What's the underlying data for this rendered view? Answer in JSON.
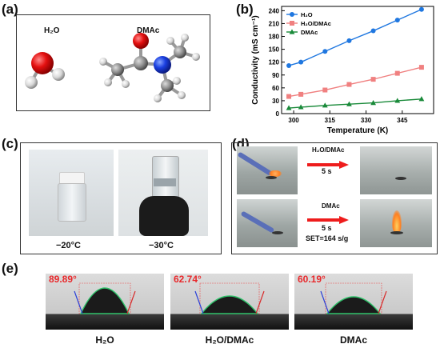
{
  "panels": {
    "a": {
      "letter": "(a)",
      "labels": [
        "H₂O",
        "DMAc"
      ]
    },
    "b": {
      "letter": "(b)"
    },
    "c": {
      "letter": "(c)",
      "captions": [
        "−20°C",
        "−30°C"
      ]
    },
    "d": {
      "letter": "(d)",
      "arrow1": {
        "top": "H₂O/DMAc",
        "bottom": "5 s"
      },
      "arrow2": {
        "top": "DMAc",
        "bottom": "5 s",
        "extra": "SET=164 s/g"
      }
    },
    "e": {
      "letter": "(e)",
      "angles": [
        "89.89°",
        "62.74°",
        "60.19°"
      ],
      "labels": [
        "H₂O",
        "H₂O/DMAc",
        "DMAc"
      ]
    }
  },
  "chart_data": {
    "type": "line",
    "xlabel": "Temperature (K)",
    "ylabel": "Conductivity (mS cm⁻¹)",
    "xlim": [
      295,
      358
    ],
    "ylim": [
      0,
      250
    ],
    "xticks": [
      300,
      315,
      330,
      345
    ],
    "yticks": [
      0,
      30,
      60,
      90,
      120,
      150,
      180,
      210,
      240
    ],
    "legend_position": "top-left",
    "series": [
      {
        "name": "H₂O",
        "color": "#1f77e0",
        "marker": "circle",
        "x": [
          298,
          303,
          313,
          323,
          333,
          343,
          353
        ],
        "y": [
          112,
          120,
          145,
          170,
          193,
          218,
          243
        ]
      },
      {
        "name": "H₂O/DMAc",
        "color": "#f08080",
        "marker": "square",
        "x": [
          298,
          303,
          313,
          323,
          333,
          343,
          353
        ],
        "y": [
          40,
          45,
          55,
          68,
          80,
          94,
          108
        ]
      },
      {
        "name": "DMAc",
        "color": "#1a8a3a",
        "marker": "triangle",
        "x": [
          298,
          303,
          313,
          323,
          333,
          343,
          353
        ],
        "y": [
          13,
          15,
          19,
          22,
          25,
          30,
          34
        ]
      }
    ]
  }
}
